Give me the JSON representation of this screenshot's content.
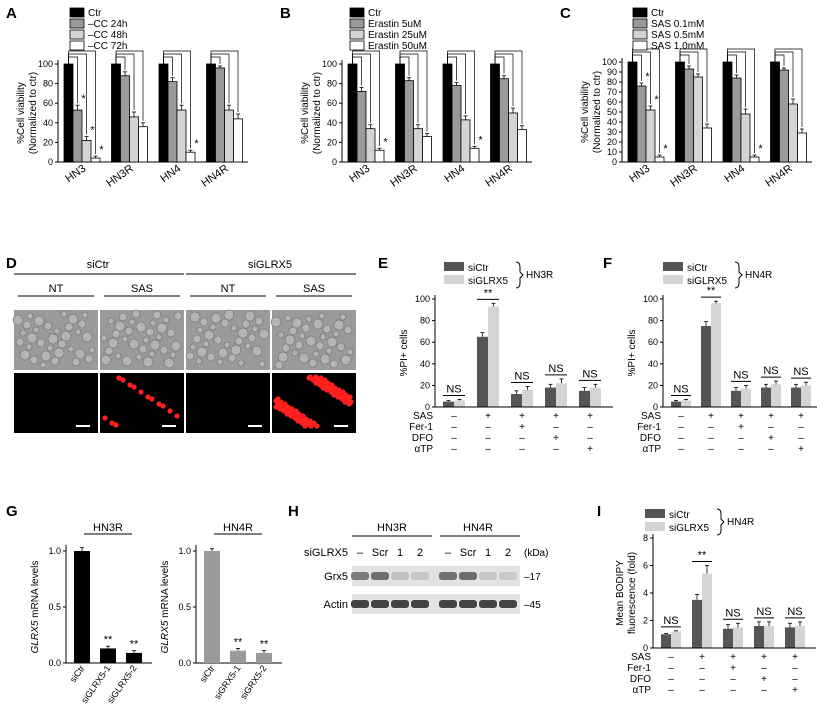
{
  "panels": {
    "A": {
      "letter": "A"
    },
    "B": {
      "letter": "B"
    },
    "C": {
      "letter": "C"
    },
    "D": {
      "letter": "D"
    },
    "E": {
      "letter": "E"
    },
    "F": {
      "letter": "F"
    },
    "G": {
      "letter": "G"
    },
    "H": {
      "letter": "H"
    },
    "I": {
      "letter": "I"
    }
  },
  "colors": {
    "black": "#000000",
    "dark": "#555555",
    "mid": "#9a9a9a",
    "light": "#d4d4d4",
    "white": "#ffffff",
    "red": "#ff2020"
  },
  "chart_data": [
    {
      "id": "A",
      "type": "bar",
      "ylabel_lines": [
        "%Cell viability",
        "(Normalized to ctr)"
      ],
      "ylim": [
        0,
        100
      ],
      "yticks": [
        0,
        20,
        40,
        60,
        80,
        100
      ],
      "categories": [
        "HN3",
        "HN3R",
        "HN4",
        "HN4R"
      ],
      "series": [
        {
          "name": "Ctr",
          "values": [
            100,
            100,
            100,
            100
          ],
          "err": [
            0,
            0,
            0,
            0
          ]
        },
        {
          "name": "–CC 24h",
          "values": [
            53,
            88,
            82,
            96
          ],
          "err": [
            5,
            4,
            4,
            2
          ]
        },
        {
          "name": "–CC 48h",
          "values": [
            22,
            46,
            53,
            53
          ],
          "err": [
            4,
            5,
            5,
            5
          ]
        },
        {
          "name": "–CC 72h",
          "values": [
            4,
            36,
            10,
            44
          ],
          "err": [
            2,
            4,
            2,
            5
          ]
        }
      ],
      "stars": [
        {
          "cat": 0,
          "series": 1,
          "text": "*"
        },
        {
          "cat": 0,
          "series": 2,
          "text": "*"
        },
        {
          "cat": 0,
          "series": 3,
          "text": "*"
        },
        {
          "cat": 2,
          "series": 3,
          "text": "*"
        }
      ]
    },
    {
      "id": "B",
      "type": "bar",
      "ylabel_lines": [
        "%Cell viability",
        "(Normalized to ctr)"
      ],
      "ylim": [
        0,
        100
      ],
      "yticks": [
        0,
        20,
        40,
        60,
        80,
        100
      ],
      "categories": [
        "HN3",
        "HN3R",
        "HN4",
        "HN4R"
      ],
      "series": [
        {
          "name": "Ctr",
          "values": [
            100,
            100,
            100,
            100
          ],
          "err": [
            0,
            0,
            0,
            0
          ]
        },
        {
          "name": "Erastin 5uM",
          "values": [
            72,
            83,
            78,
            85
          ],
          "err": [
            4,
            3,
            3,
            3
          ]
        },
        {
          "name": "Erastin 25uM",
          "values": [
            34,
            34,
            43,
            50
          ],
          "err": [
            4,
            4,
            4,
            5
          ]
        },
        {
          "name": "Erastin 50uM",
          "values": [
            12,
            26,
            14,
            33
          ],
          "err": [
            2,
            3,
            2,
            4
          ]
        }
      ],
      "stars": [
        {
          "cat": 0,
          "series": 3,
          "text": "*"
        },
        {
          "cat": 2,
          "series": 3,
          "text": "*"
        }
      ]
    },
    {
      "id": "C",
      "type": "bar",
      "ylabel_lines": [
        "%Cell viability",
        "(Normalized to ctr)"
      ],
      "ylim": [
        0,
        100
      ],
      "yticks": [
        0,
        10,
        20,
        30,
        40,
        50,
        60,
        70,
        80,
        90,
        100
      ],
      "categories": [
        "HN3",
        "HN3R",
        "HN4",
        "HN4R"
      ],
      "series": [
        {
          "name": "Ctr",
          "values": [
            100,
            100,
            100,
            100
          ],
          "err": [
            0,
            0,
            0,
            0
          ]
        },
        {
          "name": "SAS 0.1mM",
          "values": [
            76,
            93,
            84,
            92
          ],
          "err": [
            3,
            3,
            3,
            2
          ]
        },
        {
          "name": "SAS 0.5mM",
          "values": [
            52,
            85,
            48,
            58
          ],
          "err": [
            4,
            3,
            5,
            5
          ]
        },
        {
          "name": "SAS 1.0mM",
          "values": [
            5,
            34,
            5,
            29
          ],
          "err": [
            2,
            4,
            2,
            4
          ]
        }
      ],
      "stars": [
        {
          "cat": 0,
          "series": 1,
          "text": "*"
        },
        {
          "cat": 0,
          "series": 2,
          "text": "*"
        },
        {
          "cat": 0,
          "series": 3,
          "text": "*"
        },
        {
          "cat": 2,
          "series": 3,
          "text": "*"
        }
      ]
    },
    {
      "id": "E",
      "type": "bar",
      "ylabel_lines": [
        "%PI+ cells"
      ],
      "ylim": [
        0,
        100
      ],
      "yticks": [
        0,
        20,
        40,
        60,
        80,
        100
      ],
      "legend": [
        "siCtr",
        "siGLRX5"
      ],
      "bracket_label": "HN3R",
      "series": [
        {
          "name": "siCtr",
          "values": [
            5,
            65,
            12,
            18,
            15
          ],
          "err": [
            1,
            4,
            3,
            3,
            3
          ]
        },
        {
          "name": "siGLRX5",
          "values": [
            6,
            93,
            16,
            22,
            18
          ],
          "err": [
            1,
            3,
            3,
            4,
            3
          ]
        }
      ],
      "sig": [
        "NS",
        "**",
        "NS",
        "NS",
        "NS"
      ],
      "rows": [
        {
          "label": "SAS",
          "marks": [
            "–",
            "+",
            "+",
            "+",
            "+"
          ]
        },
        {
          "label": "Fer-1",
          "marks": [
            "–",
            "–",
            "+",
            "–",
            "–"
          ]
        },
        {
          "label": "DFO",
          "marks": [
            "–",
            "–",
            "–",
            "+",
            "–"
          ]
        },
        {
          "label": "αTP",
          "marks": [
            "–",
            "–",
            "–",
            "–",
            "+"
          ]
        }
      ]
    },
    {
      "id": "F",
      "type": "bar",
      "ylabel_lines": [
        "%PI+ cells"
      ],
      "ylim": [
        0,
        100
      ],
      "yticks": [
        0,
        20,
        40,
        60,
        80,
        100
      ],
      "legend": [
        "siCtr",
        "siGLRX5"
      ],
      "bracket_label": "HN4R",
      "series": [
        {
          "name": "siCtr",
          "values": [
            5,
            75,
            15,
            18,
            18
          ],
          "err": [
            1,
            4,
            3,
            3,
            3
          ]
        },
        {
          "name": "siGLRX5",
          "values": [
            6,
            96,
            17,
            21,
            20
          ],
          "err": [
            1,
            2,
            3,
            3,
            3
          ]
        }
      ],
      "sig": [
        "NS",
        "**",
        "NS",
        "NS",
        "NS"
      ],
      "rows": [
        {
          "label": "SAS",
          "marks": [
            "–",
            "+",
            "+",
            "+",
            "+"
          ]
        },
        {
          "label": "Fer-1",
          "marks": [
            "–",
            "–",
            "+",
            "–",
            "–"
          ]
        },
        {
          "label": "DFO",
          "marks": [
            "–",
            "–",
            "–",
            "+",
            "–"
          ]
        },
        {
          "label": "αTP",
          "marks": [
            "–",
            "–",
            "–",
            "–",
            "+"
          ]
        }
      ]
    },
    {
      "id": "G1",
      "type": "bar",
      "title": "HN3R",
      "ylabel": "GLRX5 mRNA levels",
      "ylabel_italic": "GLRX5",
      "ylim": [
        0,
        1.0
      ],
      "yticks": [
        0,
        0.5,
        1.0
      ],
      "ytick_labels": [
        "0.0",
        "0.5",
        "1.0"
      ],
      "categories": [
        "siCtr",
        "siGLRX5-1",
        "siGLRX5-2"
      ],
      "values": [
        1.0,
        0.13,
        0.09
      ],
      "err": [
        0.03,
        0.02,
        0.02
      ],
      "sig": [
        "",
        "**",
        "**"
      ],
      "color": "black"
    },
    {
      "id": "G2",
      "type": "bar",
      "title": "HN4R",
      "ylabel": "GLRX5 mRNA levels",
      "ylabel_italic": "GLRX5",
      "ylim": [
        0,
        1.0
      ],
      "yticks": [
        0,
        0.5,
        1.0
      ],
      "ytick_labels": [
        "0.0",
        "0.5",
        "1.0"
      ],
      "categories": [
        "siCtr",
        "siGRX5-1",
        "siGRX5-2"
      ],
      "values": [
        1.0,
        0.11,
        0.09
      ],
      "err": [
        0.02,
        0.02,
        0.02
      ],
      "sig": [
        "",
        "**",
        "**"
      ],
      "color": "mid"
    },
    {
      "id": "I",
      "type": "bar",
      "ylabel_lines": [
        "Mean BODIPY",
        "fluorescence (fold)"
      ],
      "ylim": [
        0,
        8
      ],
      "yticks": [
        0,
        2,
        4,
        6,
        8
      ],
      "legend": [
        "siCtr",
        "siGLRX5"
      ],
      "bracket_label": "HN4R",
      "series": [
        {
          "name": "siCtr",
          "values": [
            1.0,
            3.5,
            1.4,
            1.6,
            1.5
          ],
          "err": [
            0.05,
            0.4,
            0.3,
            0.3,
            0.3
          ]
        },
        {
          "name": "siGLRX5",
          "values": [
            1.2,
            5.4,
            1.5,
            1.6,
            1.6
          ],
          "err": [
            0.05,
            0.6,
            0.3,
            0.3,
            0.3
          ]
        }
      ],
      "sig": [
        "NS",
        "**",
        "NS",
        "NS",
        "NS"
      ],
      "rows": [
        {
          "label": "SAS",
          "marks": [
            "–",
            "+",
            "+",
            "+",
            "+"
          ]
        },
        {
          "label": "Fer-1",
          "marks": [
            "–",
            "–",
            "+",
            "–",
            "–"
          ]
        },
        {
          "label": "DFO",
          "marks": [
            "–",
            "–",
            "–",
            "+",
            "–"
          ]
        },
        {
          "label": "αTP",
          "marks": [
            "–",
            "–",
            "–",
            "–",
            "+"
          ]
        }
      ]
    }
  ],
  "panelD": {
    "groups": [
      "siCtr",
      "siGLRX5"
    ],
    "conditions": [
      "NT",
      "SAS",
      "NT",
      "SAS"
    ]
  },
  "panelH": {
    "cell_lines": [
      "HN3R",
      "HN4R"
    ],
    "row_label": "siGLRX5",
    "lane_labels": [
      "–",
      "Scr",
      "1",
      "2",
      "–",
      "Scr",
      "1",
      "2"
    ],
    "unit": "(kDa)",
    "bands": [
      {
        "name": "Grx5",
        "marker": "17",
        "intensity": [
          0.55,
          0.6,
          0.15,
          0.12,
          0.6,
          0.62,
          0.12,
          0.1
        ]
      },
      {
        "name": "Actin",
        "marker": "45",
        "intensity": [
          0.85,
          0.85,
          0.85,
          0.85,
          0.85,
          0.85,
          0.85,
          0.85
        ]
      }
    ]
  }
}
